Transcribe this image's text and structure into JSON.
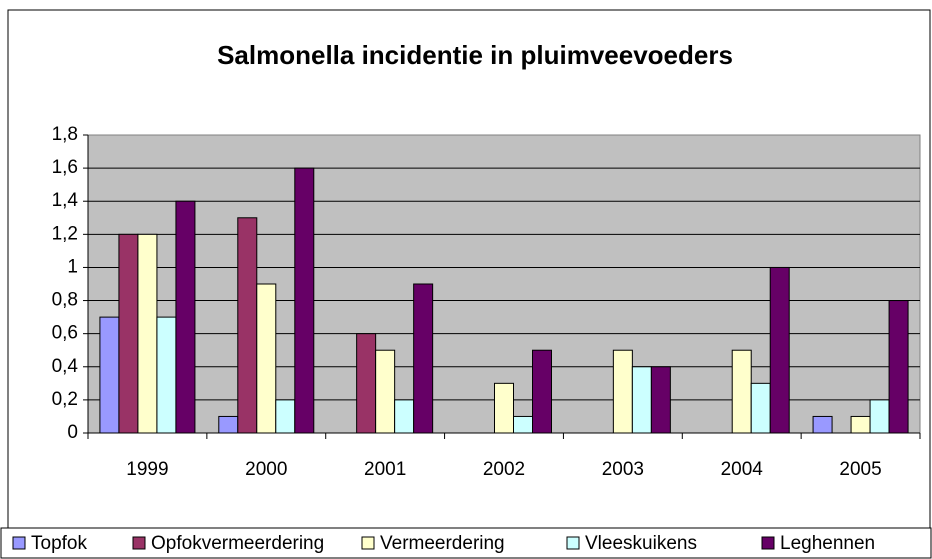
{
  "chart_data": {
    "type": "bar",
    "title": "Salmonella incidentie in pluimveevoeders",
    "categories": [
      "1999",
      "2000",
      "2001",
      "2002",
      "2003",
      "2004",
      "2005"
    ],
    "series": [
      {
        "name": "Topfok",
        "color": "#9999ff",
        "values": [
          0.7,
          0.1,
          0,
          0,
          0,
          0,
          0.1
        ]
      },
      {
        "name": "Opfokvermeerdering",
        "color": "#993366",
        "values": [
          1.2,
          1.3,
          0.6,
          0,
          0,
          0,
          0
        ]
      },
      {
        "name": "Vermeerdering",
        "color": "#ffffcc",
        "values": [
          1.2,
          0.9,
          0.5,
          0.3,
          0.5,
          0.5,
          0.1
        ]
      },
      {
        "name": "Vleeskuikens",
        "color": "#ccffff",
        "values": [
          0.7,
          0.2,
          0.2,
          0.1,
          0.4,
          0.3,
          0.2
        ]
      },
      {
        "name": "Leghennen",
        "color": "#660066",
        "values": [
          1.4,
          1.6,
          0.9,
          0.5,
          0.4,
          1.0,
          0.8
        ]
      }
    ],
    "ylim": [
      0,
      1.8
    ],
    "yticks": [
      0,
      {
        "value": 0.2,
        "label": "0,2"
      },
      {
        "value": 0.4,
        "label": "0,4"
      },
      {
        "value": 0.6,
        "label": "0,6"
      },
      {
        "value": 0.8,
        "label": "0,8"
      },
      1,
      {
        "value": 1.2,
        "label": "1,2"
      },
      {
        "value": 1.4,
        "label": "1,4"
      },
      {
        "value": 1.6,
        "label": "1,6"
      },
      {
        "value": 1.8,
        "label": "1,8"
      }
    ],
    "grid": true,
    "legend": "bottom"
  }
}
